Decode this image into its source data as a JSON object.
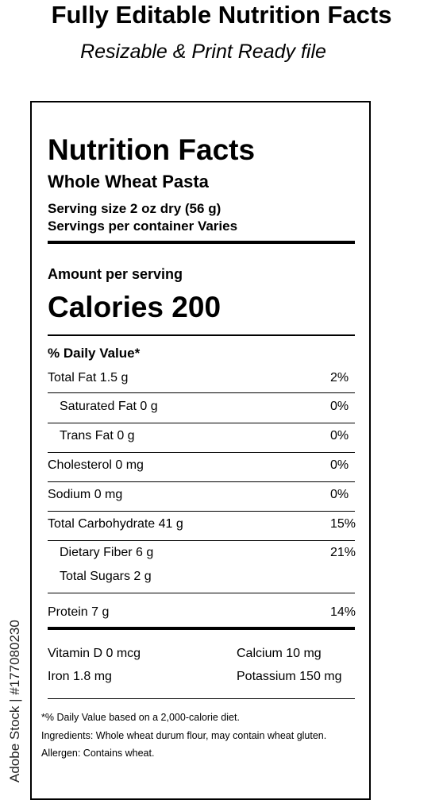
{
  "header": {
    "title": "Fully Editable Nutrition Facts",
    "subtitle": "Resizable & Print Ready file"
  },
  "label": {
    "title": "Nutrition Facts",
    "product": "Whole Wheat Pasta",
    "serving_size": "Serving size 2 oz dry (56 g)",
    "servings": "Servings per container Varies",
    "amount": "Amount per serving",
    "calories": "Calories 200",
    "dv_header": "% Daily Value*",
    "nutrients": [
      {
        "name": "Total Fat 1.5 g",
        "dv": "2%"
      },
      {
        "name": "Saturated Fat 0 g",
        "dv": "0%"
      },
      {
        "name": "Trans Fat 0 g",
        "dv": "0%"
      },
      {
        "name": "Cholesterol 0 mg",
        "dv": "0%"
      },
      {
        "name": "Sodium 0 mg",
        "dv": "0%"
      },
      {
        "name": "Total Carbohydrate 41 g",
        "dv": "15%"
      },
      {
        "name": "Dietary Fiber 6 g",
        "dv": "21%"
      },
      {
        "name": "Total Sugars 2 g"
      },
      {
        "name": "Protein 7 g",
        "dv": "14%"
      }
    ],
    "vitamins": [
      [
        "Vitamin D 0 mcg",
        "Calcium 10 mg"
      ],
      [
        "Iron 1.8 mg",
        "Potassium 150 mg"
      ]
    ],
    "footnotes": [
      "*% Daily Value based on a 2,000-calorie diet.",
      "Ingredients: Whole wheat durum flour, may contain wheat gluten.",
      "Allergen: Contains wheat."
    ]
  },
  "watermark": "Adobe Stock | #177080230"
}
